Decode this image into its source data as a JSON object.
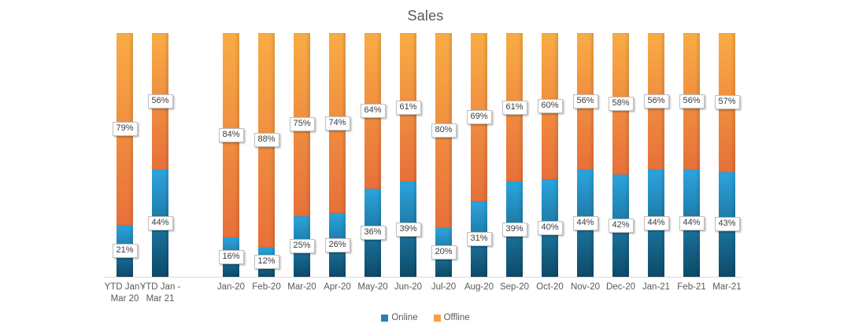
{
  "title": "Sales",
  "legend": {
    "online_label": "Online",
    "offline_label": "Offline"
  },
  "colors": {
    "online_top": "#2CA4DE",
    "online_bottom": "#0D4A67",
    "online_legend": "#2383B8",
    "offline_top": "#F9AC45",
    "offline_bottom": "#E7703A",
    "offline_legend": "#F5A142",
    "axis_line": "#D9D9D9",
    "title_text": "#595959",
    "axis_text": "#595959"
  },
  "chart_data": {
    "type": "bar",
    "stacked": true,
    "title": "Sales",
    "xlabel": "",
    "ylabel": "",
    "ylim": [
      0,
      100
    ],
    "grid": false,
    "legend_position": "bottom",
    "data_labels": "center",
    "value_suffix": "%",
    "categories": [
      "YTD Jan - Mar 20",
      "YTD Jan - Mar 21",
      "Jan-20",
      "Feb-20",
      "Mar-20",
      "Apr-20",
      "May-20",
      "Jun-20",
      "Jul-20",
      "Aug-20",
      "Sep-20",
      "Oct-20",
      "Nov-20",
      "Dec-20",
      "Jan-21",
      "Feb-21",
      "Mar-21"
    ],
    "series": [
      {
        "name": "Online",
        "values": [
          21,
          44,
          16,
          12,
          25,
          26,
          36,
          39,
          20,
          31,
          39,
          40,
          44,
          42,
          44,
          44,
          43
        ]
      },
      {
        "name": "Offline",
        "values": [
          79,
          56,
          84,
          88,
          75,
          74,
          64,
          61,
          80,
          69,
          61,
          60,
          56,
          58,
          56,
          56,
          57
        ]
      }
    ]
  }
}
